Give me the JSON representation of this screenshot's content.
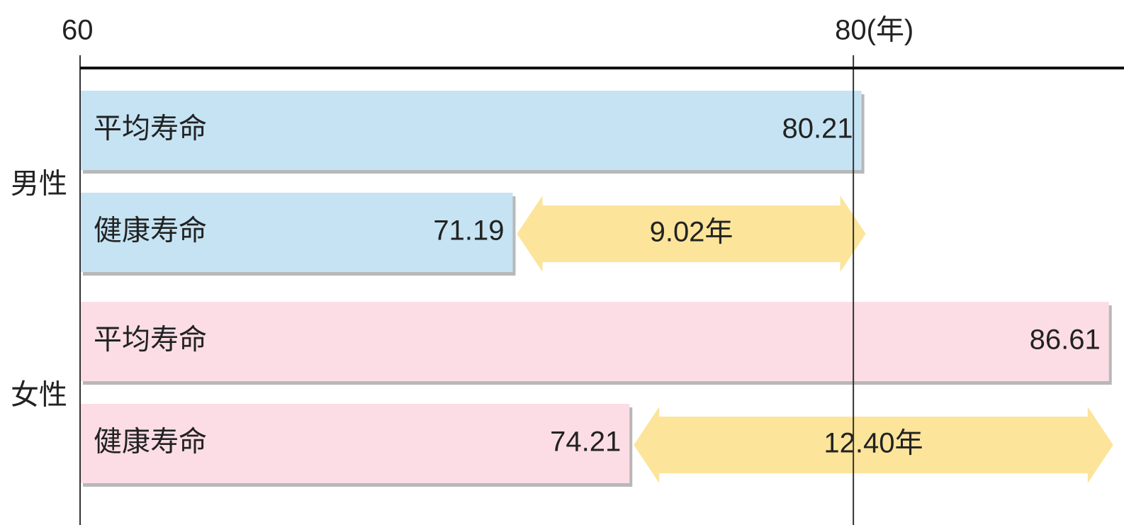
{
  "chart_data": {
    "type": "bar",
    "xlim": [
      60,
      87
    ],
    "xticks": [
      60,
      {
        "value": 80,
        "label": "80(年)"
      }
    ],
    "groups": [
      {
        "name": "男性",
        "color": "#c5e3f3",
        "bars": [
          {
            "label": "平均寿命",
            "value": 80.21
          },
          {
            "label": "健康寿命",
            "value": 71.19
          }
        ],
        "gap": {
          "value": 9.02,
          "label": "9.02年"
        }
      },
      {
        "name": "女性",
        "color": "#fcdde6",
        "bars": [
          {
            "label": "平均寿命",
            "value": 86.61
          },
          {
            "label": "健康寿命",
            "value": 74.21
          }
        ],
        "gap": {
          "value": 12.4,
          "label": "12.40年"
        }
      }
    ],
    "gap_color": "#fce49a"
  }
}
